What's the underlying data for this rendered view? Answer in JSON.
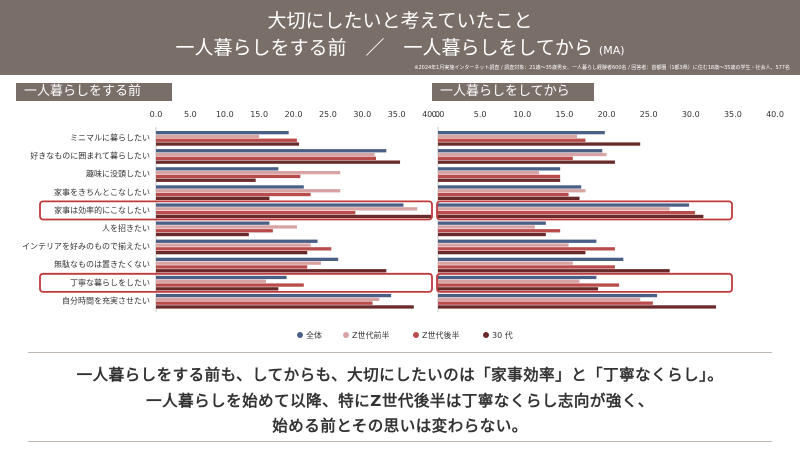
{
  "header": {
    "title_line1": "大切にしたいと考えていたこと",
    "title_line2": "一人暮らしをする前　／　一人暮らしをしてから",
    "ma": "(MA)",
    "note": "※2024年1月実施インターネット調査 / 調査対象：21歳～35歳男女、一人暮らし経験者600名 / 回答者：首都圏（1都3県）に住む18歳～35歳の学生・社会人、577名"
  },
  "panels": {
    "before_label": "一人暮らしをする前",
    "after_label": "一人暮らしをしてから"
  },
  "summary": {
    "line1": "一人暮らしをする前も、してからも、大切にしたいのは「家事効率」と「丁寧なくらし」。",
    "line2": "一人暮らしを始めて以降、特にZ世代後半は丁寧なくらし志向が強く、",
    "line3": "始める前とその思いは変わらない。"
  },
  "colors": {
    "全体": "#4a5f86",
    "Z世代前半": "#d8a3a3",
    "Z世代後半": "#b94b4b",
    "30代": "#6a2a2a",
    "highlight": "#c0393b"
  },
  "chart_data": {
    "type": "bar",
    "orientation": "horizontal",
    "categories": [
      "ミニマルに暮らしたい",
      "好きなものに囲まれて暮らしたい",
      "趣味に没頭したい",
      "家事をきちんとこなしたい",
      "家事は効率的にこなしたい",
      "人を招きたい",
      "インテリアを好みのもので揃えたい",
      "無駄なものは置きたくない",
      "丁寧な暮らしをしたい",
      "自分時間を充実させたい"
    ],
    "highlighted_categories": [
      "家事は効率的にこなしたい",
      "丁寧な暮らしをしたい"
    ],
    "legend": [
      "全体",
      "Z世代前半",
      "Z世代後半",
      "30 代"
    ],
    "legend_position": "bottom",
    "xticks": [
      "0.0",
      "5.0",
      "10.0",
      "15.0",
      "20.0",
      "25.0",
      "30.0",
      "35.0",
      "40.0"
    ],
    "xlim": [
      0,
      40
    ],
    "panels": [
      {
        "name": "一人暮らしをする前",
        "series": [
          {
            "name": "全体",
            "values": [
              19.3,
              33.5,
              17.8,
              21.5,
              36.0,
              16.5,
              23.5,
              26.5,
              19.0,
              34.2
            ]
          },
          {
            "name": "Z世代前半",
            "values": [
              15.0,
              31.8,
              26.8,
              26.8,
              38.0,
              20.5,
              22.5,
              24.0,
              16.0,
              32.5
            ]
          },
          {
            "name": "Z世代後半",
            "values": [
              20.5,
              32.0,
              21.0,
              22.5,
              29.0,
              17.0,
              25.5,
              22.0,
              21.5,
              31.5
            ]
          },
          {
            "name": "30 代",
            "values": [
              20.8,
              35.5,
              14.5,
              16.5,
              40.0,
              13.5,
              22.0,
              33.5,
              17.8,
              37.5
            ]
          }
        ]
      },
      {
        "name": "一人暮らしをしてから",
        "series": [
          {
            "name": "全体",
            "values": [
              19.8,
              19.5,
              14.5,
              17.0,
              29.8,
              12.8,
              18.8,
              22.0,
              18.8,
              26.0
            ]
          },
          {
            "name": "Z世代前半",
            "values": [
              16.5,
              20.0,
              12.0,
              17.5,
              27.5,
              11.5,
              15.5,
              16.0,
              16.8,
              24.0
            ]
          },
          {
            "name": "Z世代後半",
            "values": [
              17.5,
              16.0,
              14.5,
              15.5,
              30.5,
              14.5,
              21.0,
              21.0,
              21.5,
              25.5
            ]
          },
          {
            "name": "30 代",
            "values": [
              24.0,
              21.0,
              14.5,
              16.8,
              31.5,
              12.8,
              17.5,
              27.5,
              19.0,
              33.0
            ]
          }
        ]
      }
    ]
  }
}
